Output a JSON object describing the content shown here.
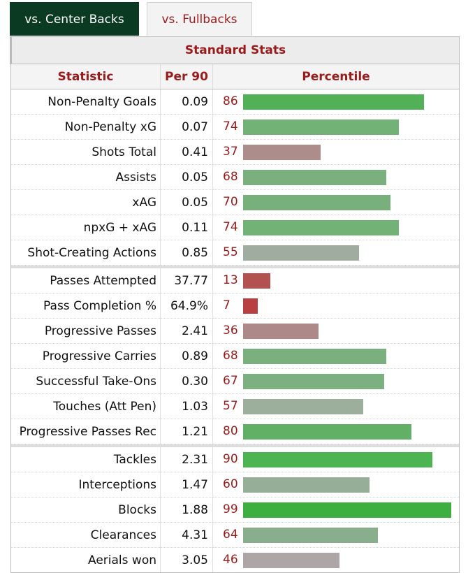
{
  "tabs": [
    {
      "label": "vs. Center Backs",
      "active": true
    },
    {
      "label": "vs. Fullbacks",
      "active": false
    }
  ],
  "table": {
    "caption": "Standard Stats",
    "headers": {
      "statistic": "Statistic",
      "per90": "Per 90",
      "percentile": "Percentile"
    },
    "groups": [
      [
        {
          "stat": "Non-Penalty Goals",
          "per90": "0.09",
          "percentile": 86,
          "color": "#52b056"
        },
        {
          "stat": "Non-Penalty xG",
          "per90": "0.07",
          "percentile": 74,
          "color": "#72b276"
        },
        {
          "stat": "Shots Total",
          "per90": "0.41",
          "percentile": 37,
          "color": "#ad8c8c"
        },
        {
          "stat": "Assists",
          "per90": "0.05",
          "percentile": 68,
          "color": "#7ab07e"
        },
        {
          "stat": "xAG",
          "per90": "0.05",
          "percentile": 70,
          "color": "#78b07c"
        },
        {
          "stat": "npxG + xAG",
          "per90": "0.11",
          "percentile": 74,
          "color": "#72b276"
        },
        {
          "stat": "Shot-Creating Actions",
          "per90": "0.85",
          "percentile": 55,
          "color": "#a1aca1"
        }
      ],
      [
        {
          "stat": "Passes Attempted",
          "per90": "37.77",
          "percentile": 13,
          "color": "#b35050"
        },
        {
          "stat": "Pass Completion %",
          "per90": "64.9%",
          "percentile": 7,
          "color": "#b84040"
        },
        {
          "stat": "Progressive Passes",
          "per90": "2.41",
          "percentile": 36,
          "color": "#ae8989"
        },
        {
          "stat": "Progressive Carries",
          "per90": "0.89",
          "percentile": 68,
          "color": "#7ab07e"
        },
        {
          "stat": "Successful Take-Ons",
          "per90": "0.30",
          "percentile": 67,
          "color": "#7cb080"
        },
        {
          "stat": "Touches (Att Pen)",
          "per90": "1.03",
          "percentile": 57,
          "color": "#9caf9d"
        },
        {
          "stat": "Progressive Passes Rec",
          "per90": "1.21",
          "percentile": 80,
          "color": "#62b066"
        }
      ],
      [
        {
          "stat": "Tackles",
          "per90": "2.31",
          "percentile": 90,
          "color": "#4cb450"
        },
        {
          "stat": "Interceptions",
          "per90": "1.47",
          "percentile": 60,
          "color": "#96ae98"
        },
        {
          "stat": "Blocks",
          "per90": "1.88",
          "percentile": 99,
          "color": "#3caf40"
        },
        {
          "stat": "Clearances",
          "per90": "4.31",
          "percentile": 64,
          "color": "#88ae8b"
        },
        {
          "stat": "Aerials won",
          "per90": "3.05",
          "percentile": 46,
          "color": "#aea6a6"
        }
      ]
    ]
  }
}
